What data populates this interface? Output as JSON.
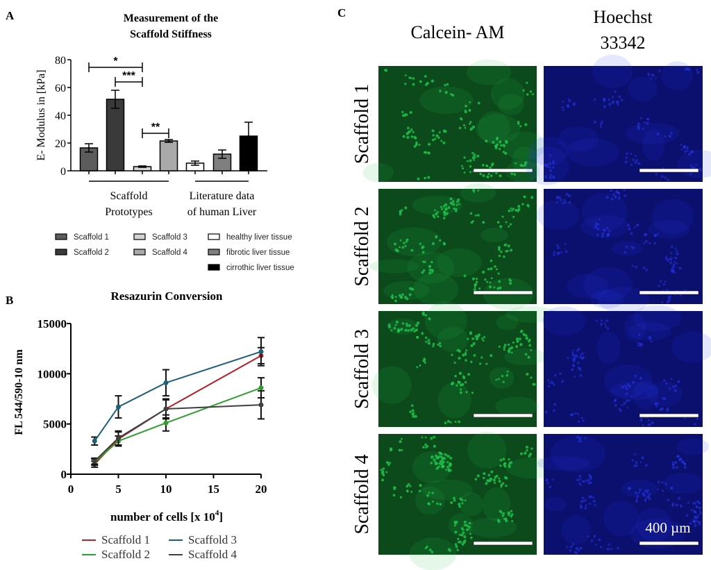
{
  "panels": {
    "a_label": "A",
    "b_label": "B",
    "c_label": "C"
  },
  "chart_data": [
    {
      "type": "bar",
      "title_lines": [
        "Measurement of the",
        "Scaffold Stiffness"
      ],
      "ylabel": "E- Modulus in [kPa]",
      "xlabel": "",
      "ylim": [
        0,
        80
      ],
      "yticks": [
        0,
        20,
        40,
        60,
        80
      ],
      "categories": [
        "Scaffold 1",
        "Scaffold 2",
        "Scaffold 3",
        "Scaffold 4",
        "healthy liver tissue",
        "fibrotic liver tissue",
        "cirrothic liver tissue"
      ],
      "values": [
        16.5,
        51.5,
        3,
        21.5,
        5.5,
        12,
        25
      ],
      "errors": [
        3,
        6.5,
        0.5,
        1,
        1.5,
        3,
        10
      ],
      "colors": [
        "#5c5c5c",
        "#3a3a3a",
        "#d4d4d4",
        "#a9a9a9",
        "#ffffff",
        "#7f7f7f",
        "#000000"
      ],
      "groups": [
        {
          "label_lines": [
            "Scaffold",
            "Prototypes"
          ],
          "from": 0,
          "to": 3
        },
        {
          "label_lines": [
            "Literature data",
            "of human Liver"
          ],
          "from": 4,
          "to": 6
        }
      ],
      "significance": [
        {
          "from": 0,
          "to": 2,
          "level": 74.5,
          "label": "*"
        },
        {
          "from": 1,
          "to": 2,
          "level": 64,
          "label": "***"
        },
        {
          "from": 2,
          "to": 3,
          "level": 27,
          "label": "**"
        }
      ],
      "grid": false,
      "legend_placement": "bottom"
    },
    {
      "type": "line",
      "title": "Resazurin Conversion",
      "ylabel": "FL 544/590-10 nm",
      "xlabel_parts": [
        "number of cells [x 10",
        "4",
        "]"
      ],
      "x": [
        2.5,
        5,
        10,
        20
      ],
      "xlim": [
        0,
        20
      ],
      "xticks": [
        0,
        5,
        10,
        15,
        20
      ],
      "ylim": [
        0,
        15000
      ],
      "yticks": [
        0,
        5000,
        10000,
        15000
      ],
      "series": [
        {
          "name": "Scaffold 1",
          "color": "#b3202a",
          "values": [
            1000,
            3500,
            6500,
            11800
          ],
          "errors": [
            300,
            700,
            900,
            800
          ]
        },
        {
          "name": "Scaffold 2",
          "color": "#2e9e2e",
          "values": [
            1200,
            3300,
            5100,
            8600
          ],
          "errors": [
            300,
            500,
            800,
            1000
          ]
        },
        {
          "name": "Scaffold 3",
          "color": "#1d5f78",
          "values": [
            3300,
            6700,
            9100,
            12200
          ],
          "errors": [
            400,
            1100,
            1300,
            1400
          ]
        },
        {
          "name": "Scaffold 4",
          "color": "#3f3f3f",
          "values": [
            1300,
            3600,
            6500,
            6900
          ],
          "errors": [
            300,
            700,
            1000,
            1400
          ]
        }
      ],
      "grid": false,
      "legend_placement": "bottom"
    }
  ],
  "panel_c": {
    "columns": [
      {
        "title_lines": [
          "Calcein- AM"
        ],
        "stain": "green",
        "color": "#1fbf4a",
        "background": "#0c4a1c"
      },
      {
        "title_lines": [
          "Hoechst",
          "33342"
        ],
        "stain": "blue",
        "color": "#2a3cff",
        "background": "#0b0f6e"
      }
    ],
    "rows": [
      "Scaffold 1",
      "Scaffold 2",
      "Scaffold 3",
      "Scaffold 4"
    ],
    "scale_bar_label": "400 µm"
  }
}
